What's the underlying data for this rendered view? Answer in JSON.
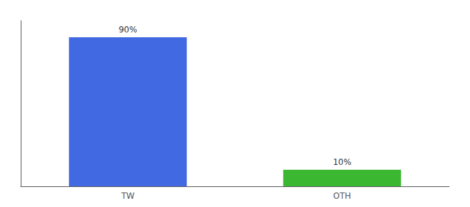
{
  "chart_data": {
    "type": "bar",
    "categories": [
      "TW",
      "OTH"
    ],
    "values": [
      90,
      10
    ],
    "value_labels": [
      "90%",
      "10%"
    ],
    "data_labels": true,
    "colors": [
      "#4169e1",
      "#3cb731"
    ],
    "ylim": [
      0,
      100
    ],
    "grid": false,
    "tick_labels": "x"
  }
}
